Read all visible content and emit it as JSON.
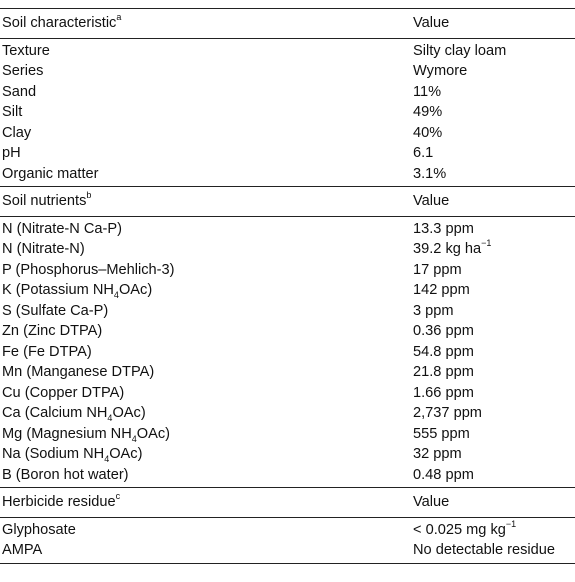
{
  "sections": [
    {
      "header": {
        "label": "Soil characteristic",
        "sup": "a",
        "value": "Value"
      },
      "rows": [
        {
          "label": "Texture",
          "value": "Silty clay loam"
        },
        {
          "label": "Series",
          "value": "Wymore"
        },
        {
          "label": "Sand",
          "value": "11%"
        },
        {
          "label": "Silt",
          "value": "49%"
        },
        {
          "label": "Clay",
          "value": "40%"
        },
        {
          "label": "pH",
          "value": "6.1"
        },
        {
          "label": "Organic matter",
          "value": "3.1%"
        }
      ]
    },
    {
      "header": {
        "label": "Soil nutrients",
        "sup": "b",
        "value": "Value"
      },
      "rows": [
        {
          "label": "N (Nitrate-N Ca-P)",
          "value": "13.3 ppm"
        },
        {
          "label": "N (Nitrate-N)",
          "value": "39.2 kg ha",
          "value_sup": "−1"
        },
        {
          "label": "P (Phosphorus–Mehlich-3)",
          "value": "17 ppm"
        },
        {
          "label": "K (Potassium NH",
          "label_sub": "4",
          "label_tail": "OAc)",
          "value": "142 ppm"
        },
        {
          "label": "S (Sulfate Ca-P)",
          "value": "3 ppm"
        },
        {
          "label": "Zn (Zinc DTPA)",
          "value": "0.36 ppm"
        },
        {
          "label": "Fe (Fe DTPA)",
          "value": "54.8 ppm"
        },
        {
          "label": "Mn (Manganese DTPA)",
          "value": "21.8 ppm"
        },
        {
          "label": "Cu (Copper DTPA)",
          "value": "1.66 ppm"
        },
        {
          "label": "Ca (Calcium NH",
          "label_sub": "4",
          "label_tail": "OAc)",
          "value": "2,737 ppm"
        },
        {
          "label": "Mg (Magnesium NH",
          "label_sub": "4",
          "label_tail": "OAc)",
          "value": "555 ppm"
        },
        {
          "label": "Na (Sodium NH",
          "label_sub": "4",
          "label_tail": "OAc)",
          "value": "32 ppm"
        },
        {
          "label": "B (Boron hot water)",
          "value": "0.48 ppm"
        }
      ]
    },
    {
      "header": {
        "label": "Herbicide residue",
        "sup": "c",
        "value": "Value"
      },
      "rows": [
        {
          "label": "Glyphosate",
          "value": "< 0.025 mg kg",
          "value_sup": "−1"
        },
        {
          "label": "AMPA",
          "value": "No detectable residue"
        }
      ]
    }
  ]
}
